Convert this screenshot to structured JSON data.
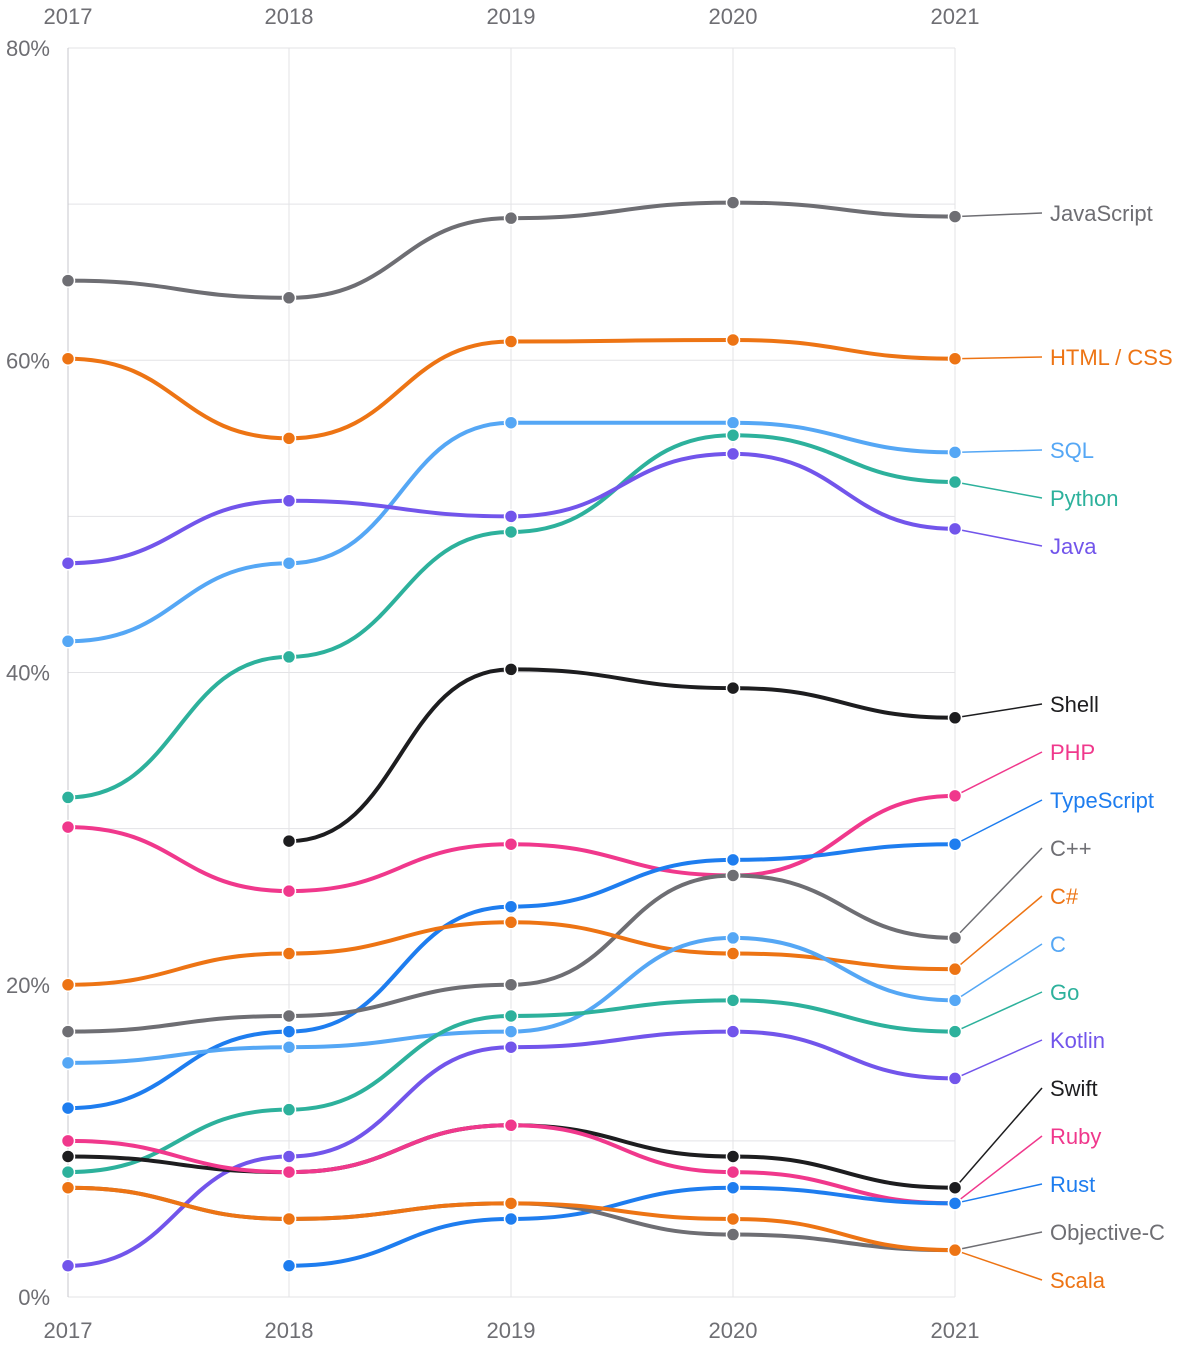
{
  "chart_data": {
    "type": "line",
    "title": "",
    "xlabel": "",
    "ylabel": "",
    "x": [
      "2017",
      "2018",
      "2019",
      "2020",
      "2021"
    ],
    "ylim": [
      0,
      80
    ],
    "y_ticks": [
      {
        "value": 0,
        "label": "0%"
      },
      {
        "value": 20,
        "label": "20%"
      },
      {
        "value": 40,
        "label": "40%"
      },
      {
        "value": 60,
        "label": "60%"
      },
      {
        "value": 80,
        "label": "80%"
      }
    ],
    "grid": true,
    "x_tick_labels_top": true,
    "x_tick_labels_bottom": true,
    "legend": "end-of-line labels on right",
    "series": [
      {
        "name": "JavaScript",
        "color": "#6e6e73",
        "values": [
          65.1,
          64.0,
          69.1,
          70.1,
          69.2
        ]
      },
      {
        "name": "HTML / CSS",
        "color": "#ed7414",
        "values": [
          60.1,
          55.0,
          61.2,
          61.3,
          60.1
        ]
      },
      {
        "name": "SQL",
        "color": "#55a7f5",
        "values": [
          42.0,
          47.0,
          56.0,
          56.0,
          54.1
        ]
      },
      {
        "name": "Python",
        "color": "#2db19c",
        "values": [
          32.0,
          41.0,
          49.0,
          55.2,
          52.2
        ]
      },
      {
        "name": "Java",
        "color": "#7255eb",
        "values": [
          47.0,
          51.0,
          50.0,
          54.0,
          49.2
        ]
      },
      {
        "name": "Shell",
        "color": "#1d1d1f",
        "values": [
          null,
          29.2,
          40.2,
          39.0,
          37.1
        ]
      },
      {
        "name": "PHP",
        "color": "#f0388c",
        "values": [
          30.1,
          26.0,
          29.0,
          27.0,
          32.1
        ]
      },
      {
        "name": "TypeScript",
        "color": "#1e7def",
        "values": [
          12.1,
          17.0,
          25.0,
          28.0,
          29.0
        ]
      },
      {
        "name": "C++",
        "color": "#6e6e73",
        "values": [
          17.0,
          18.0,
          20.0,
          27.0,
          23.0
        ]
      },
      {
        "name": "C#",
        "color": "#ed7414",
        "values": [
          20.0,
          22.0,
          24.0,
          22.0,
          21.0
        ]
      },
      {
        "name": "C",
        "color": "#55a7f5",
        "values": [
          15.0,
          16.0,
          17.0,
          23.0,
          19.0
        ]
      },
      {
        "name": "Go",
        "color": "#2db19c",
        "values": [
          8.0,
          12.0,
          18.0,
          19.0,
          17.0
        ]
      },
      {
        "name": "Kotlin",
        "color": "#7255eb",
        "values": [
          2.0,
          9.0,
          16.0,
          17.0,
          14.0
        ]
      },
      {
        "name": "Swift",
        "color": "#1d1d1f",
        "values": [
          9.0,
          8.0,
          11.0,
          9.0,
          7.0
        ]
      },
      {
        "name": "Ruby",
        "color": "#f0388c",
        "values": [
          10.0,
          8.0,
          11.0,
          8.0,
          6.0
        ]
      },
      {
        "name": "Rust",
        "color": "#1e7def",
        "values": [
          null,
          2.0,
          5.0,
          7.0,
          6.0
        ]
      },
      {
        "name": "Objective-C",
        "color": "#6e6e73",
        "values": [
          7.0,
          5.0,
          6.0,
          4.0,
          3.0
        ]
      },
      {
        "name": "Scala",
        "color": "#ed7414",
        "values": [
          7.0,
          5.0,
          6.0,
          5.0,
          3.0
        ]
      }
    ]
  }
}
